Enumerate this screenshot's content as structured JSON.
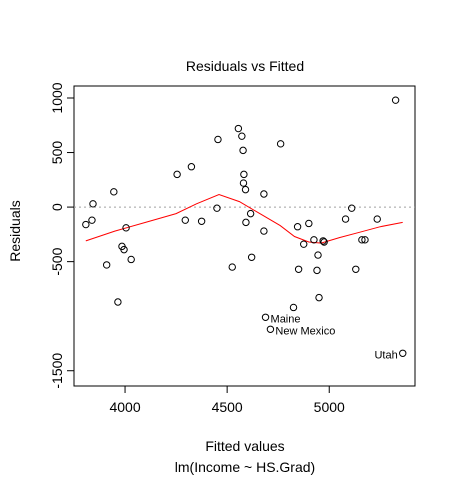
{
  "chart_data": {
    "type": "scatter",
    "title": "Residuals vs Fitted",
    "xlabel": "Fitted values",
    "subtitle": "lm(Income ~ HS.Grad)",
    "ylabel": "Residuals",
    "xlim": [
      3750,
      5420
    ],
    "ylim": [
      -1640,
      1110
    ],
    "x_ticks": [
      4000,
      4500,
      5000
    ],
    "x_tick_labels": [
      "4000",
      "4500",
      "5000"
    ],
    "y_ticks": [
      -1500,
      -500,
      0,
      500,
      1000
    ],
    "y_tick_labels": [
      "-1500",
      "-500",
      "0",
      "500",
      "1000"
    ],
    "zero_line": true,
    "grid": false,
    "point_color": "#000000",
    "smooth_color": "#ff0000",
    "reference_line_color": "#a0a0a0",
    "points": [
      [
        3808,
        -160
      ],
      [
        3838,
        -120
      ],
      [
        3843,
        30
      ],
      [
        3910,
        -530
      ],
      [
        3945,
        140
      ],
      [
        3965,
        -870
      ],
      [
        3985,
        -360
      ],
      [
        3995,
        -390
      ],
      [
        4005,
        -190
      ],
      [
        4030,
        -480
      ],
      [
        4255,
        300
      ],
      [
        4295,
        -120
      ],
      [
        4325,
        370
      ],
      [
        4375,
        -130
      ],
      [
        4455,
        620
      ],
      [
        4450,
        -10
      ],
      [
        4525,
        -550
      ],
      [
        4555,
        720
      ],
      [
        4572,
        650
      ],
      [
        4578,
        520
      ],
      [
        4582,
        300
      ],
      [
        4580,
        220
      ],
      [
        4590,
        160
      ],
      [
        4592,
        -140
      ],
      [
        4615,
        -60
      ],
      [
        4620,
        -460
      ],
      [
        4680,
        120
      ],
      [
        4680,
        -220
      ],
      [
        4762,
        580
      ],
      [
        4825,
        -920
      ],
      [
        4845,
        -180
      ],
      [
        4850,
        -570
      ],
      [
        4875,
        -340
      ],
      [
        4900,
        -150
      ],
      [
        4925,
        -300
      ],
      [
        4940,
        -580
      ],
      [
        4945,
        -440
      ],
      [
        4950,
        -830
      ],
      [
        4970,
        -310
      ],
      [
        4975,
        -320
      ],
      [
        5080,
        -110
      ],
      [
        5110,
        -10
      ],
      [
        5130,
        -570
      ],
      [
        5160,
        -300
      ],
      [
        5175,
        -300
      ],
      [
        5235,
        -110
      ],
      [
        5325,
        980
      ],
      [
        4688,
        -1010
      ],
      [
        4712,
        -1120
      ],
      [
        5360,
        -1340
      ]
    ],
    "smooth": [
      [
        3808,
        -310
      ],
      [
        3950,
        -220
      ],
      [
        4100,
        -140
      ],
      [
        4250,
        -60
      ],
      [
        4350,
        30
      ],
      [
        4460,
        115
      ],
      [
        4560,
        50
      ],
      [
        4660,
        -60
      ],
      [
        4760,
        -170
      ],
      [
        4830,
        -270
      ],
      [
        4900,
        -320
      ],
      [
        4960,
        -330
      ],
      [
        5050,
        -280
      ],
      [
        5150,
        -230
      ],
      [
        5250,
        -180
      ],
      [
        5360,
        -140
      ]
    ],
    "annotations": [
      {
        "label": "Maine",
        "x": 4688,
        "y": -1010
      },
      {
        "label": "New Mexico",
        "x": 4712,
        "y": -1120
      },
      {
        "label": "Utah",
        "x": 5360,
        "y": -1340
      }
    ]
  }
}
